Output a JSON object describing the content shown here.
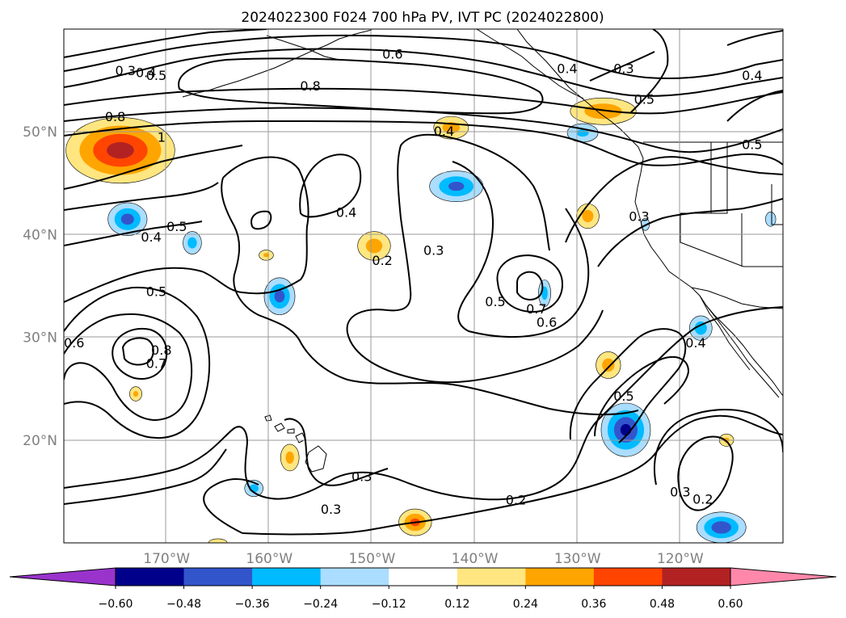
{
  "chart_data": {
    "type": "contour-map",
    "title": "2024022300 F024 700 hPa PV, IVT PC (2024022800)",
    "projection": "cylindrical",
    "extent": {
      "lon_min": -180,
      "lon_max": -110,
      "lat_min": 10,
      "lat_max": 60
    },
    "grid": true,
    "longitude_ticks": [
      {
        "value": -170,
        "label": "170°W"
      },
      {
        "value": -160,
        "label": "160°W"
      },
      {
        "value": -150,
        "label": "150°W"
      },
      {
        "value": -140,
        "label": "140°W"
      },
      {
        "value": -130,
        "label": "130°W"
      },
      {
        "value": -120,
        "label": "120°W"
      }
    ],
    "latitude_ticks": [
      {
        "value": 20,
        "label": "20°N"
      },
      {
        "value": 30,
        "label": "30°N"
      },
      {
        "value": 40,
        "label": "40°N"
      },
      {
        "value": 50,
        "label": "50°N"
      }
    ],
    "contour_labels": [
      {
        "text": "0.3",
        "lon": -174,
        "lat": 56.0
      },
      {
        "text": "0.4",
        "lon": -172,
        "lat": 55.8
      },
      {
        "text": "0.5",
        "lon": -171,
        "lat": 55.5
      },
      {
        "text": "0.6",
        "lon": -148,
        "lat": 57.6
      },
      {
        "text": "0.4",
        "lon": -131,
        "lat": 56.2
      },
      {
        "text": "0.3",
        "lon": -125.5,
        "lat": 56.2
      },
      {
        "text": "0.4",
        "lon": -113,
        "lat": 55.5
      },
      {
        "text": "0.8",
        "lon": -156,
        "lat": 54.5
      },
      {
        "text": "0.5",
        "lon": -123.5,
        "lat": 53.2
      },
      {
        "text": "0.5",
        "lon": -113,
        "lat": 48.8
      },
      {
        "text": "0.8",
        "lon": -175,
        "lat": 51.5
      },
      {
        "text": "1",
        "lon": -170.5,
        "lat": 49.5
      },
      {
        "text": "0.4",
        "lon": -143,
        "lat": 50.1
      },
      {
        "text": "0.5",
        "lon": -169,
        "lat": 40.8
      },
      {
        "text": "0.4",
        "lon": -171.5,
        "lat": 39.8
      },
      {
        "text": "0.4",
        "lon": -152.5,
        "lat": 42.2
      },
      {
        "text": "0.3",
        "lon": -124,
        "lat": 41.8
      },
      {
        "text": "0.2",
        "lon": -149,
        "lat": 37.5
      },
      {
        "text": "0.3",
        "lon": -144,
        "lat": 38.5
      },
      {
        "text": "0.5",
        "lon": -171,
        "lat": 34.5
      },
      {
        "text": "0.5",
        "lon": -138,
        "lat": 33.5
      },
      {
        "text": "0.7",
        "lon": -134,
        "lat": 32.8
      },
      {
        "text": "0.6",
        "lon": -133,
        "lat": 31.5
      },
      {
        "text": "0.6",
        "lon": -179,
        "lat": 29.5
      },
      {
        "text": "0.8",
        "lon": -170.5,
        "lat": 28.8
      },
      {
        "text": "0.7",
        "lon": -171,
        "lat": 27.5
      },
      {
        "text": "0.4",
        "lon": -118.5,
        "lat": 29.5
      },
      {
        "text": "0.5",
        "lon": -125.5,
        "lat": 24.3
      },
      {
        "text": "0.3",
        "lon": -151,
        "lat": 16.5
      },
      {
        "text": "0.3",
        "lon": -154,
        "lat": 13.3
      },
      {
        "text": "0.2",
        "lon": -136,
        "lat": 14.2
      },
      {
        "text": "0.3",
        "lon": -120,
        "lat": 15.0
      },
      {
        "text": "0.2",
        "lon": -117.8,
        "lat": 14.3
      }
    ],
    "ivt_pc_shading": [
      {
        "sign": "positive",
        "lon": -174.5,
        "lat": 48.2,
        "rlon": 5.3,
        "rlat": 3.2,
        "peak": 0.54
      },
      {
        "sign": "positive",
        "lon": -142.3,
        "lat": 50.4,
        "rlon": 1.7,
        "rlat": 1.1,
        "peak": 0.3
      },
      {
        "sign": "positive",
        "lon": -127.5,
        "lat": 52.0,
        "rlon": 3.2,
        "rlat": 1.3,
        "peak": 0.34
      },
      {
        "sign": "positive",
        "lon": -129.0,
        "lat": 41.8,
        "rlon": 1.1,
        "rlat": 1.2,
        "peak": 0.3
      },
      {
        "sign": "positive",
        "lon": -149.8,
        "lat": 38.9,
        "rlon": 1.6,
        "rlat": 1.4,
        "peak": 0.3
      },
      {
        "sign": "positive",
        "lon": -160.3,
        "lat": 38.0,
        "rlon": 0.7,
        "rlat": 0.5,
        "peak": 0.26
      },
      {
        "sign": "positive",
        "lon": -127.0,
        "lat": 27.3,
        "rlon": 1.2,
        "rlat": 1.3,
        "peak": 0.3
      },
      {
        "sign": "positive",
        "lon": -173.0,
        "lat": 24.5,
        "rlon": 0.6,
        "rlat": 0.7,
        "peak": 0.26
      },
      {
        "sign": "positive",
        "lon": -158.0,
        "lat": 18.3,
        "rlon": 0.9,
        "rlat": 1.3,
        "peak": 0.28
      },
      {
        "sign": "positive",
        "lon": -145.8,
        "lat": 12.0,
        "rlon": 1.6,
        "rlat": 1.3,
        "peak": 0.4
      },
      {
        "sign": "positive",
        "lon": -115.5,
        "lat": 20.0,
        "rlon": 0.7,
        "rlat": 0.6,
        "peak": 0.26
      },
      {
        "sign": "positive",
        "lon": -165.0,
        "lat": 10.0,
        "rlon": 0.9,
        "rlat": 0.4,
        "peak": 0.22
      },
      {
        "sign": "negative",
        "lon": -173.8,
        "lat": 41.5,
        "rlon": 1.9,
        "rlat": 1.6,
        "peak": -0.42
      },
      {
        "sign": "negative",
        "lon": -167.5,
        "lat": 39.2,
        "rlon": 0.9,
        "rlat": 1.1,
        "peak": -0.3
      },
      {
        "sign": "negative",
        "lon": -141.8,
        "lat": 44.7,
        "rlon": 2.6,
        "rlat": 1.5,
        "peak": -0.4
      },
      {
        "sign": "negative",
        "lon": -159.0,
        "lat": 34.0,
        "rlon": 1.5,
        "rlat": 1.8,
        "peak": -0.42
      },
      {
        "sign": "negative",
        "lon": -133.2,
        "lat": 34.3,
        "rlon": 0.6,
        "rlat": 1.3,
        "peak": -0.3
      },
      {
        "sign": "negative",
        "lon": -125.3,
        "lat": 21.0,
        "rlon": 2.4,
        "rlat": 2.6,
        "peak": -0.52
      },
      {
        "sign": "negative",
        "lon": -118.0,
        "lat": 30.9,
        "rlon": 1.1,
        "rlat": 1.2,
        "peak": -0.32
      },
      {
        "sign": "negative",
        "lon": -161.5,
        "lat": 15.3,
        "rlon": 0.9,
        "rlat": 0.8,
        "peak": -0.3
      },
      {
        "sign": "negative",
        "lon": -129.5,
        "lat": 49.9,
        "rlon": 1.5,
        "rlat": 0.9,
        "peak": -0.26
      },
      {
        "sign": "negative",
        "lon": -116.0,
        "lat": 11.5,
        "rlon": 2.4,
        "rlat": 1.5,
        "peak": -0.46
      },
      {
        "sign": "negative",
        "lon": -111.2,
        "lat": 41.5,
        "rlon": 0.5,
        "rlat": 0.7,
        "peak": -0.22
      },
      {
        "sign": "negative",
        "lon": -123.4,
        "lat": 41.0,
        "rlon": 0.4,
        "rlat": 0.6,
        "peak": -0.2
      }
    ],
    "colorbar": {
      "orientation": "horizontal",
      "extend": "both",
      "boundaries": [
        -0.6,
        -0.48,
        -0.36,
        -0.24,
        -0.12,
        0.12,
        0.24,
        0.36,
        0.48,
        0.6
      ],
      "tick_labels": [
        "−0.60",
        "−0.48",
        "−0.36",
        "−0.24",
        "−0.12",
        "0.12",
        "0.24",
        "0.36",
        "0.48",
        "0.60"
      ],
      "colors": [
        "#9933cc",
        "#00008b",
        "#3355cc",
        "#00bbff",
        "#aaddff",
        "#ffffff",
        "#ffe680",
        "#ffa500",
        "#ff4500",
        "#b22222",
        "#ff88aa"
      ]
    }
  }
}
